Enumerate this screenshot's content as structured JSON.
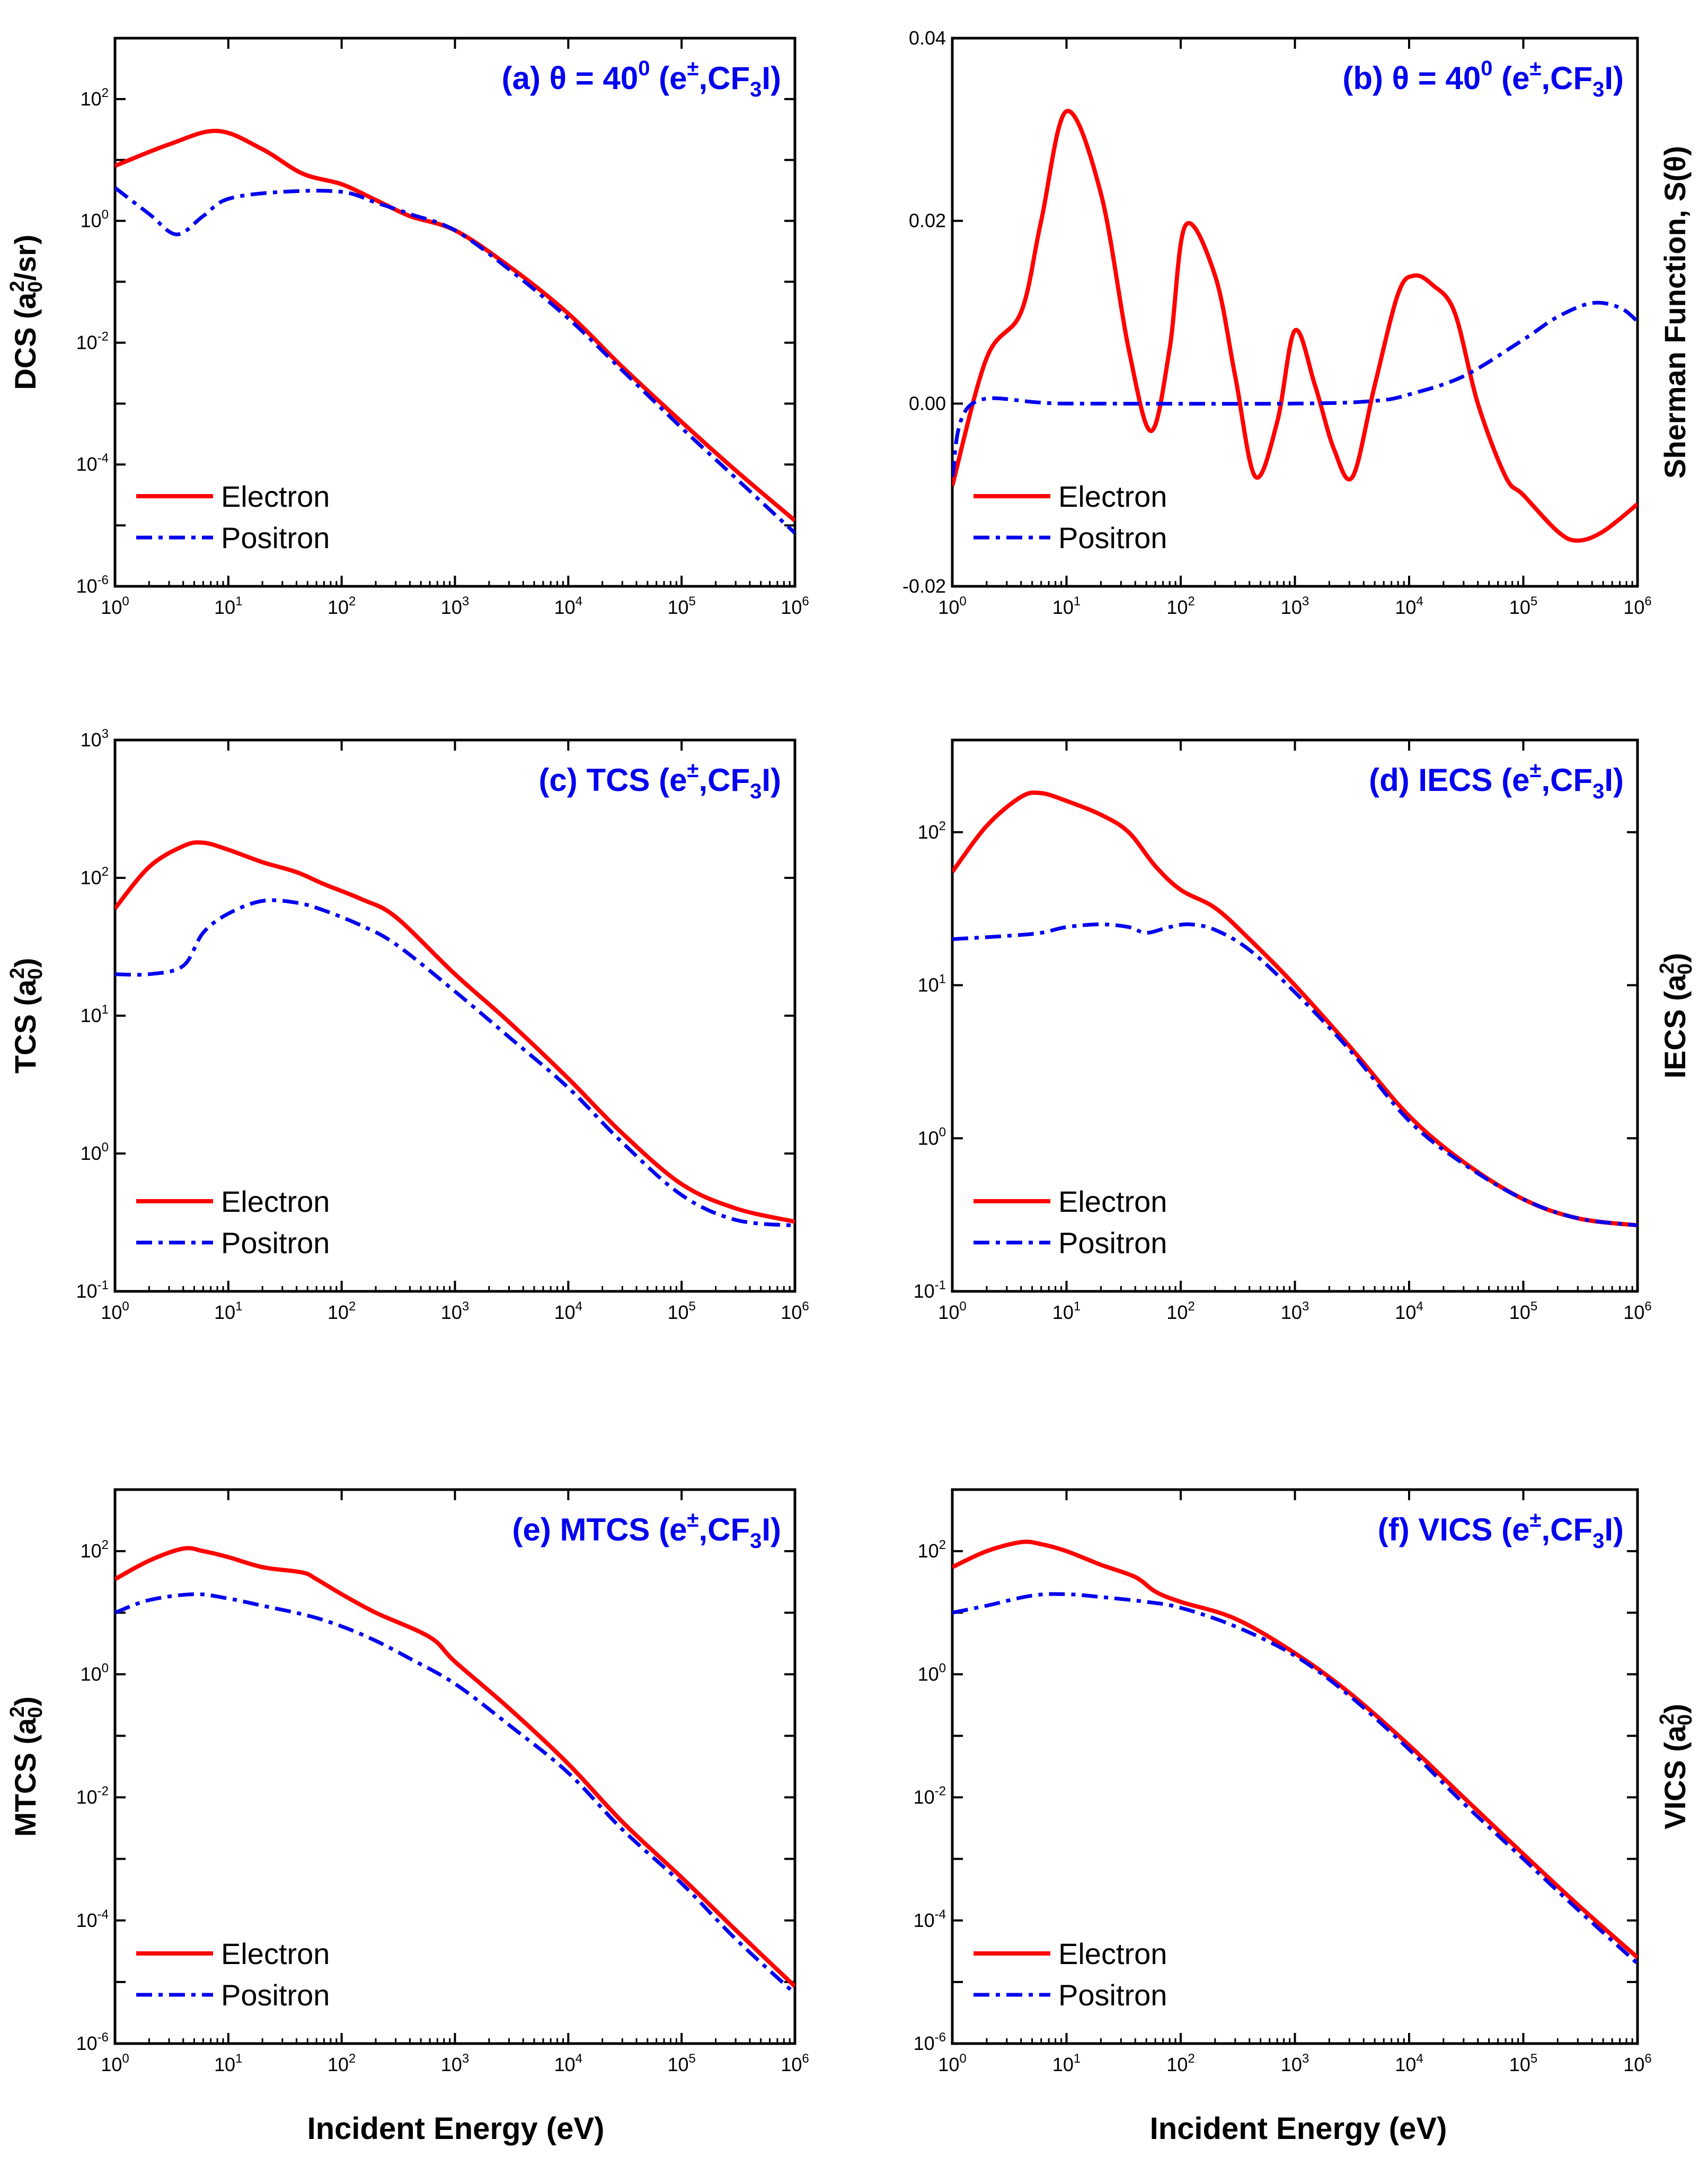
{
  "figure": {
    "xlabel": "Incident Energy (eV)",
    "colors": {
      "electron": "#ff0000",
      "positron": "#0000ee",
      "title": "#0000ee"
    },
    "legend": {
      "electron_label": "Electron",
      "positron_label": "Positron"
    }
  },
  "chart_data": [
    {
      "id": "a",
      "type": "line",
      "title": {
        "prefix": "(a) θ = 40",
        "sup": "0",
        "mid": " (e",
        "charge": "±",
        "molecule": ",CF",
        "sub": "3",
        "tail": "I)"
      },
      "ylabel": {
        "pre": "DCS (a",
        "sub": "0",
        "sup": "2",
        "post": "/sr)"
      },
      "xscale": "log",
      "yscale": "log",
      "xlim": [
        1,
        1000000
      ],
      "ylim": [
        1e-06,
        1000
      ],
      "xticks": [
        "10^0",
        "10^1",
        "10^2",
        "10^3",
        "10^4",
        "10^5",
        "10^6"
      ],
      "yticks": [
        "10^-6",
        "10^-4",
        "10^-2",
        "10^0",
        "10^2"
      ],
      "series": [
        {
          "name": "Electron",
          "style": "solid",
          "x": [
            1,
            3,
            8,
            20,
            45,
            100,
            200,
            400,
            1000,
            3000,
            10000,
            30000,
            100000,
            300000,
            1000000
          ],
          "y": [
            8,
            18,
            30,
            15,
            6,
            4,
            2.2,
            1.2,
            0.7,
            0.18,
            0.03,
            0.004,
            0.0005,
            8e-05,
            1.2e-05
          ]
        },
        {
          "name": "Positron",
          "style": "dashdot",
          "x": [
            1,
            2,
            3.5,
            6,
            10,
            30,
            100,
            200,
            400,
            1000,
            3000,
            10000,
            30000,
            100000,
            300000,
            1000000
          ],
          "y": [
            3.5,
            1.3,
            0.6,
            1.2,
            2.3,
            3.0,
            3.0,
            2.0,
            1.3,
            0.7,
            0.16,
            0.025,
            0.0035,
            0.0004,
            6e-05,
            7.5e-06
          ]
        }
      ]
    },
    {
      "id": "b",
      "type": "line",
      "title": {
        "prefix": "(b) θ = 40",
        "sup": "0",
        "mid": "  (e",
        "charge": "±",
        "molecule": ",CF",
        "sub": "3",
        "tail": "I)"
      },
      "ylabel": {
        "text": "Sherman Function, S(θ)"
      },
      "ylabel_side": "right",
      "xscale": "log",
      "yscale": "linear",
      "xlim": [
        1,
        1000000
      ],
      "ylim": [
        -0.02,
        0.04
      ],
      "xticks": [
        "10^0",
        "10^1",
        "10^2",
        "10^3",
        "10^4",
        "10^5",
        "10^6"
      ],
      "yticks": [
        "-0.02",
        "0.00",
        "0.02",
        "0.04"
      ],
      "yticks_values": [
        -0.02,
        0.0,
        0.02,
        0.04
      ],
      "series": [
        {
          "name": "Electron",
          "style": "solid",
          "x": [
            1,
            2,
            4,
            6,
            10,
            20,
            35,
            55,
            80,
            110,
            200,
            300,
            450,
            700,
            1000,
            1500,
            2200,
            3200,
            5000,
            8000,
            11000,
            16000,
            25000,
            40000,
            70000,
            100000,
            200000,
            300000,
            500000,
            1000000
          ],
          "y": [
            -0.009,
            0.005,
            0.01,
            0.02,
            0.032,
            0.023,
            0.006,
            -0.003,
            0.006,
            0.0195,
            0.014,
            0.003,
            -0.008,
            -0.002,
            0.008,
            0.002,
            -0.005,
            -0.008,
            0.002,
            0.012,
            0.014,
            0.013,
            0.01,
            0.0,
            -0.008,
            -0.01,
            -0.014,
            -0.015,
            -0.014,
            -0.011
          ]
        },
        {
          "name": "Positron",
          "style": "dashdot",
          "x": [
            1,
            1.5,
            10,
            1000,
            5000,
            10000,
            30000,
            100000,
            200000,
            400000,
            700000,
            1000000
          ],
          "y": [
            -0.008,
            0.0,
            0.0,
            0.0,
            0.0003,
            0.001,
            0.003,
            0.007,
            0.0095,
            0.011,
            0.0105,
            0.009
          ]
        }
      ]
    },
    {
      "id": "c",
      "type": "line",
      "title": {
        "prefix": "(c) TCS",
        "sup": "",
        "mid": " (e",
        "charge": "±",
        "molecule": ",CF",
        "sub": "3",
        "tail": "I)"
      },
      "ylabel": {
        "pre": "TCS (a",
        "sub": "0",
        "sup": "2",
        "post": ")"
      },
      "xscale": "log",
      "yscale": "log",
      "xlim": [
        1,
        1000000
      ],
      "ylim": [
        0.1,
        1000
      ],
      "xticks": [
        "10^0",
        "10^1",
        "10^2",
        "10^3",
        "10^4",
        "10^5",
        "10^6"
      ],
      "yticks": [
        "10^-1",
        "10^0",
        "10^1",
        "10^2",
        "10^3"
      ],
      "series": [
        {
          "name": "Electron",
          "style": "solid",
          "x": [
            1,
            2,
            4,
            6,
            10,
            20,
            40,
            70,
            150,
            300,
            1000,
            3000,
            10000,
            30000,
            100000,
            300000,
            1000000
          ],
          "y": [
            60,
            120,
            170,
            180,
            160,
            130,
            110,
            90,
            70,
            52,
            20,
            9,
            3.5,
            1.4,
            0.6,
            0.4,
            0.32
          ]
        },
        {
          "name": "Positron",
          "style": "dashdot",
          "x": [
            1,
            2,
            4,
            6,
            10,
            20,
            40,
            70,
            150,
            300,
            1000,
            3000,
            10000,
            30000,
            100000,
            300000,
            1000000
          ],
          "y": [
            20,
            20,
            23,
            40,
            55,
            68,
            66,
            58,
            45,
            33,
            15,
            7,
            3,
            1.2,
            0.5,
            0.33,
            0.3
          ]
        }
      ]
    },
    {
      "id": "d",
      "type": "line",
      "title": {
        "prefix": "(d) IECS",
        "sup": "",
        "mid": " (e",
        "charge": "±",
        "molecule": ",CF",
        "sub": "3",
        "tail": "I)"
      },
      "ylabel": {
        "pre": "IECS (a",
        "sub": "0",
        "sup": "2",
        "post": ")"
      },
      "ylabel_side": "right",
      "xscale": "log",
      "yscale": "log",
      "xlim": [
        1,
        1000000
      ],
      "ylim": [
        0.1,
        400
      ],
      "xticks": [
        "10^0",
        "10^1",
        "10^2",
        "10^3",
        "10^4",
        "10^5",
        "10^6"
      ],
      "yticks": [
        "10^-1",
        "10^0",
        "10^1",
        "10^2"
      ],
      "series": [
        {
          "name": "Electron",
          "style": "solid",
          "x": [
            1,
            2,
            4,
            6,
            10,
            20,
            35,
            60,
            100,
            200,
            400,
            1000,
            3000,
            10000,
            30000,
            100000,
            300000,
            1000000
          ],
          "y": [
            55,
            110,
            170,
            180,
            160,
            130,
            100,
            60,
            42,
            32,
            20,
            10,
            4,
            1.4,
            0.7,
            0.4,
            0.3,
            0.27
          ]
        },
        {
          "name": "Positron",
          "style": "dashdot",
          "x": [
            1,
            3,
            6,
            10,
            20,
            35,
            50,
            80,
            120,
            200,
            400,
            1000,
            3000,
            10000,
            30000,
            100000,
            300000,
            1000000
          ],
          "y": [
            20,
            21,
            22,
            24,
            25,
            24,
            22,
            24,
            25,
            23,
            17,
            9,
            3.8,
            1.3,
            0.68,
            0.4,
            0.3,
            0.27
          ]
        }
      ]
    },
    {
      "id": "e",
      "type": "line",
      "title": {
        "prefix": "(e) MTCS",
        "sup": "",
        "mid": " (e",
        "charge": "±",
        "molecule": ",CF",
        "sub": "3",
        "tail": "I)"
      },
      "ylabel": {
        "pre": "MTCS (a",
        "sub": "0",
        "sup": "2",
        "post": ")"
      },
      "xscale": "log",
      "yscale": "log",
      "xlim": [
        1,
        1000000
      ],
      "ylim": [
        1e-06,
        1000
      ],
      "xticks": [
        "10^0",
        "10^1",
        "10^2",
        "10^3",
        "10^4",
        "10^5",
        "10^6"
      ],
      "yticks": [
        "10^-6",
        "10^-4",
        "10^-2",
        "10^0",
        "10^2"
      ],
      "series": [
        {
          "name": "Electron",
          "style": "solid",
          "x": [
            1,
            2,
            4,
            6,
            10,
            20,
            45,
            60,
            100,
            200,
            600,
            1000,
            3000,
            10000,
            30000,
            100000,
            300000,
            1000000
          ],
          "y": [
            35,
            70,
            110,
            100,
            80,
            55,
            45,
            35,
            20,
            10,
            4,
            1.6,
            0.28,
            0.035,
            0.004,
            0.0005,
            7e-05,
            8.5e-06
          ]
        },
        {
          "name": "Positron",
          "style": "dashdot",
          "x": [
            1,
            2,
            5,
            10,
            20,
            50,
            100,
            200,
            400,
            1000,
            3000,
            10000,
            30000,
            100000,
            300000,
            1000000
          ],
          "y": [
            10,
            16,
            20,
            17,
            13,
            9,
            6,
            3.5,
            1.8,
            0.7,
            0.15,
            0.025,
            0.003,
            0.0004,
            5e-05,
            6.5e-06
          ]
        }
      ]
    },
    {
      "id": "f",
      "type": "line",
      "title": {
        "prefix": "(f) VICS",
        "sup": "",
        "mid": " (e",
        "charge": "±",
        "molecule": ",CF",
        "sub": "3",
        "tail": "I)"
      },
      "ylabel": {
        "pre": "VICS (a",
        "sub": "0",
        "sup": "2",
        "post": ")"
      },
      "ylabel_side": "right",
      "xscale": "log",
      "yscale": "log",
      "xlim": [
        1,
        1000000
      ],
      "ylim": [
        1e-06,
        1000
      ],
      "xticks": [
        "10^0",
        "10^1",
        "10^2",
        "10^3",
        "10^4",
        "10^5",
        "10^6"
      ],
      "yticks": [
        "10^-6",
        "10^-4",
        "10^-2",
        "10^0",
        "10^2"
      ],
      "series": [
        {
          "name": "Electron",
          "style": "solid",
          "x": [
            1,
            2,
            4,
            6,
            10,
            20,
            40,
            60,
            100,
            300,
            1000,
            3000,
            10000,
            30000,
            100000,
            300000,
            1000000
          ],
          "y": [
            55,
            100,
            140,
            130,
            100,
            60,
            38,
            22,
            15,
            8,
            2.2,
            0.5,
            0.07,
            0.01,
            0.0012,
            0.00018,
            2.5e-05
          ]
        },
        {
          "name": "Positron",
          "style": "dashdot",
          "x": [
            1,
            2,
            5,
            10,
            20,
            50,
            100,
            300,
            1000,
            3000,
            10000,
            30000,
            100000,
            300000,
            1000000
          ],
          "y": [
            10,
            13,
            19,
            20,
            18,
            15,
            12,
            6,
            2,
            0.45,
            0.06,
            0.008,
            0.001,
            0.00015,
            2e-05
          ]
        }
      ]
    }
  ]
}
